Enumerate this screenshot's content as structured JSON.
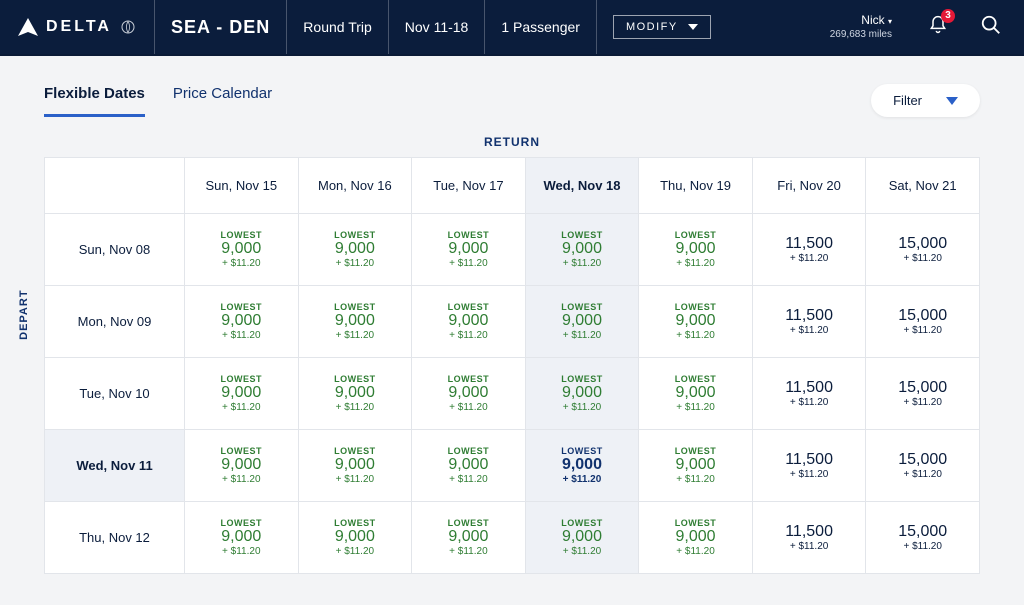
{
  "header": {
    "brand": "DELTA",
    "route": "SEA - DEN",
    "trip_type": "Round Trip",
    "dates": "Nov 11-18",
    "passengers": "1 Passenger",
    "modify_label": "MODIFY",
    "user_name": "Nick",
    "user_miles": "269,683 miles",
    "notification_count": "3"
  },
  "tabs": {
    "flexible": "Flexible Dates",
    "calendar": "Price Calendar"
  },
  "filter_label": "Filter",
  "axis": {
    "return": "RETURN",
    "depart": "DEPART"
  },
  "columns": [
    {
      "label": "Sun, Nov 15",
      "selected": false
    },
    {
      "label": "Mon, Nov 16",
      "selected": false
    },
    {
      "label": "Tue, Nov 17",
      "selected": false
    },
    {
      "label": "Wed, Nov 18",
      "selected": true
    },
    {
      "label": "Thu, Nov 19",
      "selected": false
    },
    {
      "label": "Fri, Nov 20",
      "selected": false
    },
    {
      "label": "Sat, Nov 21",
      "selected": false
    }
  ],
  "rows": [
    {
      "label": "Sun, Nov 08",
      "selected": false,
      "cells": [
        {
          "lowest": true,
          "miles": "9,000",
          "fee": "+ $11.20"
        },
        {
          "lowest": true,
          "miles": "9,000",
          "fee": "+ $11.20"
        },
        {
          "lowest": true,
          "miles": "9,000",
          "fee": "+ $11.20"
        },
        {
          "lowest": true,
          "miles": "9,000",
          "fee": "+ $11.20"
        },
        {
          "lowest": true,
          "miles": "9,000",
          "fee": "+ $11.20"
        },
        {
          "lowest": false,
          "miles": "11,500",
          "fee": "+ $11.20"
        },
        {
          "lowest": false,
          "miles": "15,000",
          "fee": "+ $11.20"
        }
      ]
    },
    {
      "label": "Mon, Nov 09",
      "selected": false,
      "cells": [
        {
          "lowest": true,
          "miles": "9,000",
          "fee": "+ $11.20"
        },
        {
          "lowest": true,
          "miles": "9,000",
          "fee": "+ $11.20"
        },
        {
          "lowest": true,
          "miles": "9,000",
          "fee": "+ $11.20"
        },
        {
          "lowest": true,
          "miles": "9,000",
          "fee": "+ $11.20"
        },
        {
          "lowest": true,
          "miles": "9,000",
          "fee": "+ $11.20"
        },
        {
          "lowest": false,
          "miles": "11,500",
          "fee": "+ $11.20"
        },
        {
          "lowest": false,
          "miles": "15,000",
          "fee": "+ $11.20"
        }
      ]
    },
    {
      "label": "Tue, Nov 10",
      "selected": false,
      "cells": [
        {
          "lowest": true,
          "miles": "9,000",
          "fee": "+ $11.20"
        },
        {
          "lowest": true,
          "miles": "9,000",
          "fee": "+ $11.20"
        },
        {
          "lowest": true,
          "miles": "9,000",
          "fee": "+ $11.20"
        },
        {
          "lowest": true,
          "miles": "9,000",
          "fee": "+ $11.20"
        },
        {
          "lowest": true,
          "miles": "9,000",
          "fee": "+ $11.20"
        },
        {
          "lowest": false,
          "miles": "11,500",
          "fee": "+ $11.20"
        },
        {
          "lowest": false,
          "miles": "15,000",
          "fee": "+ $11.20"
        }
      ]
    },
    {
      "label": "Wed, Nov 11",
      "selected": true,
      "cells": [
        {
          "lowest": true,
          "miles": "9,000",
          "fee": "+ $11.20"
        },
        {
          "lowest": true,
          "miles": "9,000",
          "fee": "+ $11.20"
        },
        {
          "lowest": true,
          "miles": "9,000",
          "fee": "+ $11.20"
        },
        {
          "lowest": true,
          "miles": "9,000",
          "fee": "+ $11.20"
        },
        {
          "lowest": true,
          "miles": "9,000",
          "fee": "+ $11.20"
        },
        {
          "lowest": false,
          "miles": "11,500",
          "fee": "+ $11.20"
        },
        {
          "lowest": false,
          "miles": "15,000",
          "fee": "+ $11.20"
        }
      ]
    },
    {
      "label": "Thu, Nov 12",
      "selected": false,
      "cells": [
        {
          "lowest": true,
          "miles": "9,000",
          "fee": "+ $11.20"
        },
        {
          "lowest": true,
          "miles": "9,000",
          "fee": "+ $11.20"
        },
        {
          "lowest": true,
          "miles": "9,000",
          "fee": "+ $11.20"
        },
        {
          "lowest": true,
          "miles": "9,000",
          "fee": "+ $11.20"
        },
        {
          "lowest": true,
          "miles": "9,000",
          "fee": "+ $11.20"
        },
        {
          "lowest": false,
          "miles": "11,500",
          "fee": "+ $11.20"
        },
        {
          "lowest": false,
          "miles": "15,000",
          "fee": "+ $11.20"
        }
      ]
    }
  ],
  "labels": {
    "lowest": "LOWEST"
  }
}
